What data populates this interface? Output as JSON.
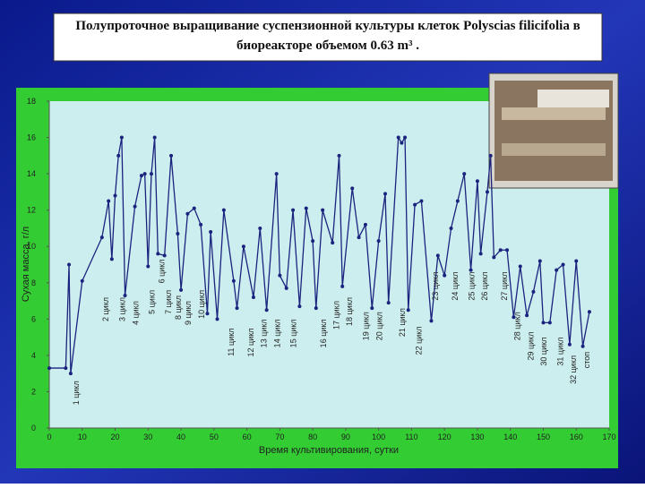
{
  "chart_data": {
    "type": "line",
    "title": "Полупроточное выращивание суспензионной культуры клеток Polyscias filicifolia в биореакторе объемом 0.63 m³ .",
    "xlabel": "Время культивирования, сутки",
    "ylabel": "Сухая масса, г/л",
    "xlim": [
      0,
      170
    ],
    "xticks": [
      0,
      10,
      20,
      30,
      40,
      50,
      60,
      70,
      80,
      90,
      100,
      110,
      120,
      130,
      140,
      150,
      160,
      170
    ],
    "ylim": [
      0,
      18
    ],
    "yticks": [
      0,
      2,
      4,
      6,
      8,
      10,
      12,
      14,
      16,
      18
    ],
    "grid": false,
    "series": [
      {
        "color": "#1a237e",
        "x": [
          0,
          5,
          6,
          6.5,
          10,
          16,
          18,
          19,
          20,
          21,
          22,
          23,
          26,
          28,
          29,
          30,
          31,
          32,
          33,
          35,
          37,
          39,
          40,
          42,
          44,
          46,
          48,
          49,
          51,
          53,
          56,
          57,
          59,
          62,
          64,
          66,
          69,
          70,
          72,
          74,
          76,
          78,
          80,
          81,
          83,
          86,
          88,
          89,
          92,
          94,
          96,
          98,
          100,
          102,
          103,
          106,
          107,
          108,
          109,
          111,
          113,
          116,
          118,
          120,
          122,
          124,
          126,
          128,
          130,
          131,
          133,
          134,
          135,
          137,
          139,
          141,
          143,
          145,
          147,
          149,
          150,
          152,
          154,
          156,
          158,
          160,
          162,
          164
        ],
        "values": [
          3.3,
          3.3,
          9,
          3,
          8.1,
          10.5,
          12.5,
          9.3,
          12.8,
          15,
          16,
          7.3,
          12.2,
          13.9,
          14,
          8.9,
          14,
          16,
          9.6,
          9.5,
          15,
          10.7,
          7.6,
          11.8,
          12.1,
          11.2,
          6.3,
          10.8,
          6,
          12,
          8.1,
          6.6,
          10,
          7.2,
          11,
          6.5,
          14,
          8.4,
          7.7,
          12,
          6.7,
          12.1,
          10.3,
          6.6,
          12,
          10.2,
          15,
          7.8,
          13.2,
          10.5,
          11.2,
          6.6,
          10.3,
          12.9,
          6.9,
          16,
          15.7,
          16,
          6.5,
          12.3,
          12.5,
          5.9,
          9.5,
          8.4,
          11,
          12.5,
          14,
          8.7,
          13.6,
          9.6,
          13,
          15,
          9.4,
          9.8,
          9.8,
          6.1,
          8.9,
          6.2,
          7.5,
          9.2,
          5.8,
          5.8,
          8.7,
          9,
          4.6,
          9.2,
          4.5,
          6.4
        ]
      }
    ],
    "annotations": [
      {
        "text": "1 цикл",
        "x": 9,
        "y": 2.6
      },
      {
        "text": "2 цикл",
        "x": 18,
        "y": 7.2
      },
      {
        "text": "3 цикл",
        "x": 23,
        "y": 7.2
      },
      {
        "text": "4 цикл",
        "x": 27,
        "y": 7
      },
      {
        "text": "5 цикл",
        "x": 32,
        "y": 7.6
      },
      {
        "text": "6 цикл",
        "x": 35,
        "y": 9.3
      },
      {
        "text": "7 цикл",
        "x": 37,
        "y": 7.6
      },
      {
        "text": "8 цикл",
        "x": 40,
        "y": 7.3
      },
      {
        "text": "9 цикл",
        "x": 43,
        "y": 7
      },
      {
        "text": "10 цикл",
        "x": 47,
        "y": 7.6
      },
      {
        "text": "11 цикл",
        "x": 56,
        "y": 5.5
      },
      {
        "text": "12 цикл",
        "x": 62,
        "y": 5.5
      },
      {
        "text": "13 цикл",
        "x": 66,
        "y": 6
      },
      {
        "text": "14 цикл",
        "x": 70,
        "y": 6
      },
      {
        "text": "15 цикл",
        "x": 75,
        "y": 6
      },
      {
        "text": "16 цикл",
        "x": 84,
        "y": 6
      },
      {
        "text": "17 цикл",
        "x": 88,
        "y": 7
      },
      {
        "text": "18 цикл",
        "x": 92,
        "y": 7.2
      },
      {
        "text": "19 цикл",
        "x": 97,
        "y": 6.4
      },
      {
        "text": "20 цикл",
        "x": 101,
        "y": 6.4
      },
      {
        "text": "21 цикл",
        "x": 108,
        "y": 6.6
      },
      {
        "text": "22 цикл",
        "x": 113,
        "y": 5.6
      },
      {
        "text": "23 цикл",
        "x": 118,
        "y": 8.6
      },
      {
        "text": "24 цикл",
        "x": 124,
        "y": 8.6
      },
      {
        "text": "25 цикл",
        "x": 129,
        "y": 8.6
      },
      {
        "text": "26 цикл",
        "x": 133,
        "y": 8.6
      },
      {
        "text": "27 цикл",
        "x": 139,
        "y": 8.6
      },
      {
        "text": "28 цикл",
        "x": 143,
        "y": 6.4
      },
      {
        "text": "29 цикл",
        "x": 147,
        "y": 5.3
      },
      {
        "text": "30 цикл",
        "x": 151,
        "y": 5
      },
      {
        "text": "31 цикл",
        "x": 156,
        "y": 5
      },
      {
        "text": "32 цикл",
        "x": 160,
        "y": 4
      },
      {
        "text": "стоп",
        "x": 164,
        "y": 4.2
      }
    ]
  }
}
